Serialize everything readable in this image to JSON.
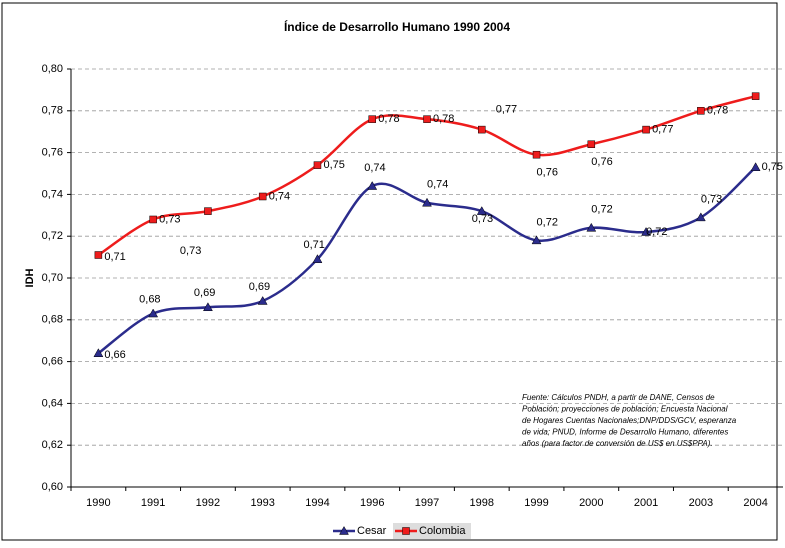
{
  "chart_data": {
    "type": "line",
    "title": "Índice de Desarrollo Humano 1990 2004",
    "y_label": "IDH",
    "categories": [
      "1990",
      "1991",
      "1992",
      "1993",
      "1994",
      "1996",
      "1997",
      "1998",
      "1999",
      "2000",
      "2001",
      "2003",
      "2004"
    ],
    "series": [
      {
        "name": "Cesar",
        "color": "#2b2c8c",
        "marker": "triangle",
        "values": [
          0.664,
          0.683,
          0.686,
          0.689,
          0.709,
          0.744,
          0.736,
          0.732,
          0.718,
          0.724,
          0.722,
          0.729,
          0.753
        ],
        "value_labels": [
          "0,66",
          "0,68",
          "0,69",
          "0,69",
          "0,71",
          "0,74",
          "0,74",
          "0,73",
          "0,72",
          "0,72",
          "0,72",
          "0,73",
          "0,75"
        ]
      },
      {
        "name": "Colombia",
        "color": "#ee1c1c",
        "marker": "square",
        "values": [
          0.711,
          0.728,
          0.732,
          0.739,
          0.754,
          0.776,
          0.776,
          0.771,
          0.759,
          0.764,
          0.771,
          0.78,
          0.787
        ],
        "value_labels": [
          "0,71",
          "0,73",
          "0,73",
          "0,74",
          "0,75",
          "0,78",
          "0,78",
          "0,77",
          "0,76",
          "0,76",
          "0,77",
          "0,78",
          null
        ]
      }
    ],
    "ylim": [
      0.6,
      0.8
    ],
    "yticks": [
      {
        "value": 0.6,
        "label": "0,60"
      },
      {
        "value": 0.62,
        "label": "0,62"
      },
      {
        "value": 0.64,
        "label": "0,64"
      },
      {
        "value": 0.66,
        "label": "0,66"
      },
      {
        "value": 0.68,
        "label": "0,68"
      },
      {
        "value": 0.7,
        "label": "0,70"
      },
      {
        "value": 0.72,
        "label": "0,72"
      },
      {
        "value": 0.74,
        "label": "0,74"
      },
      {
        "value": 0.76,
        "label": "0,76"
      },
      {
        "value": 0.78,
        "label": "0,78"
      },
      {
        "value": 0.8,
        "label": "0,80"
      }
    ],
    "grid": true,
    "smooth": true,
    "legend": "bottom",
    "annotation": [
      "Fuente: Cálculos PNDH, a partir de DANE, Censos de",
      "Población; proyecciones de población; Encuesta Nacional",
      "de Hogares Cuentas Nacionales;DNP/DDS/GCV, esperanza",
      "de vida; PNUD, Informe de Desarrollo Humano, diferentes",
      "años (para factor de conversión de US$ en US$PPA)."
    ]
  }
}
